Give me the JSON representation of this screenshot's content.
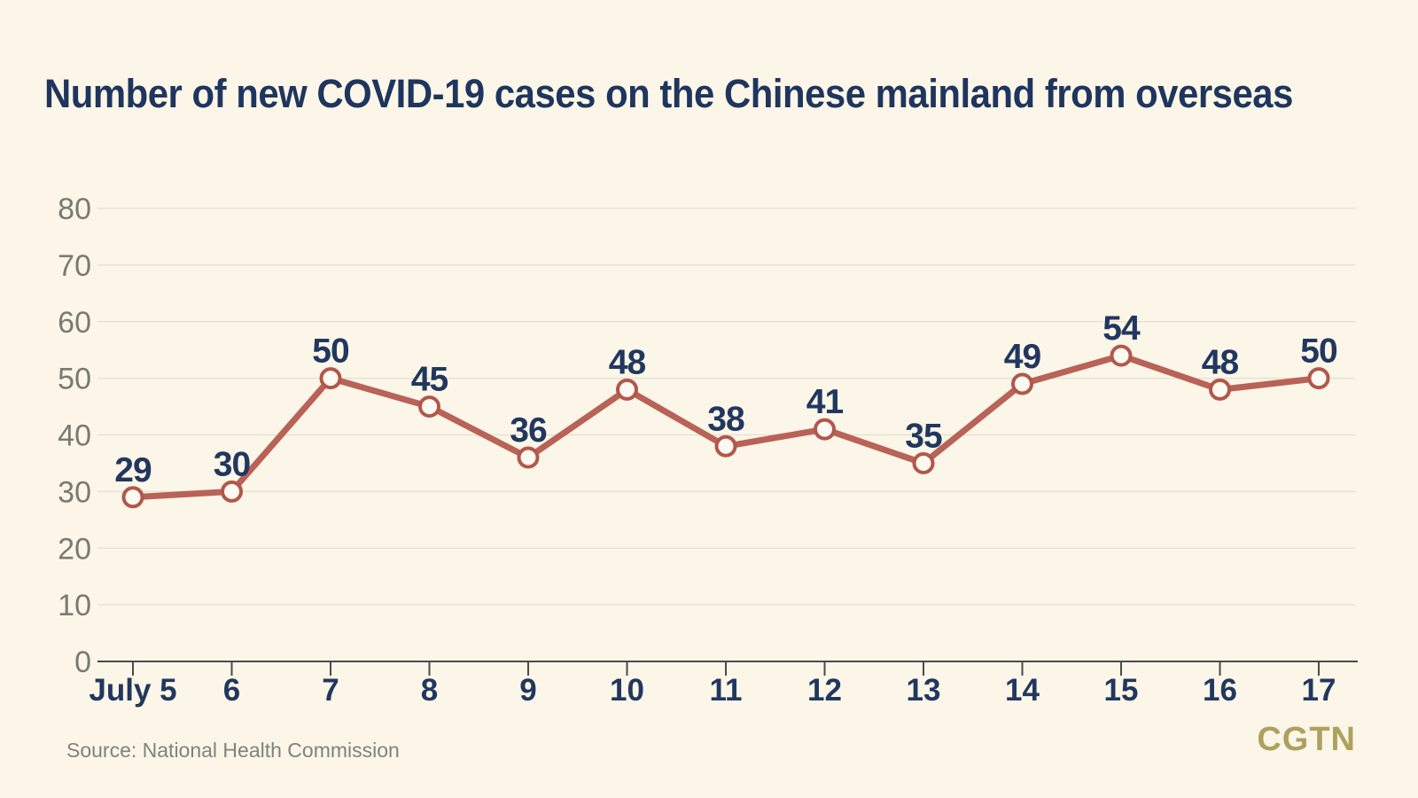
{
  "title": "Number of new COVID-19 cases on the Chinese mainland from overseas",
  "source": "Source: National Health Commission",
  "logo": "CGTN",
  "colors": {
    "background": "#FBF6E7",
    "title_navy": "#1E355E",
    "label_navy": "#21375F",
    "line_red": "#B96257",
    "marker_stroke": "#B2574C",
    "marker_fill": "#FDFAF1",
    "gridline": "#E6E2D4",
    "axis": "#4A4A48",
    "ytick_gray": "#7B7A70",
    "source_gray": "#82817C",
    "logo_gold": "#B0A05E"
  },
  "chart_data": {
    "type": "line",
    "title": "Number of new COVID-19 cases on the Chinese mainland from overseas",
    "categories": [
      "July 5",
      "6",
      "7",
      "8",
      "9",
      "10",
      "11",
      "12",
      "13",
      "14",
      "15",
      "16",
      "17"
    ],
    "values": [
      29,
      30,
      50,
      45,
      36,
      48,
      38,
      41,
      35,
      49,
      54,
      48,
      50
    ],
    "xlabel": "",
    "ylabel": "",
    "ylim": [
      0,
      80
    ],
    "ytick_step": 10,
    "yticks": [
      0,
      10,
      20,
      30,
      40,
      50,
      60,
      70,
      80
    ],
    "grid": "horizontal",
    "legend": "none",
    "marker": "open-circle",
    "data_labels": "above-points",
    "source": "Source: National Health Commission"
  }
}
